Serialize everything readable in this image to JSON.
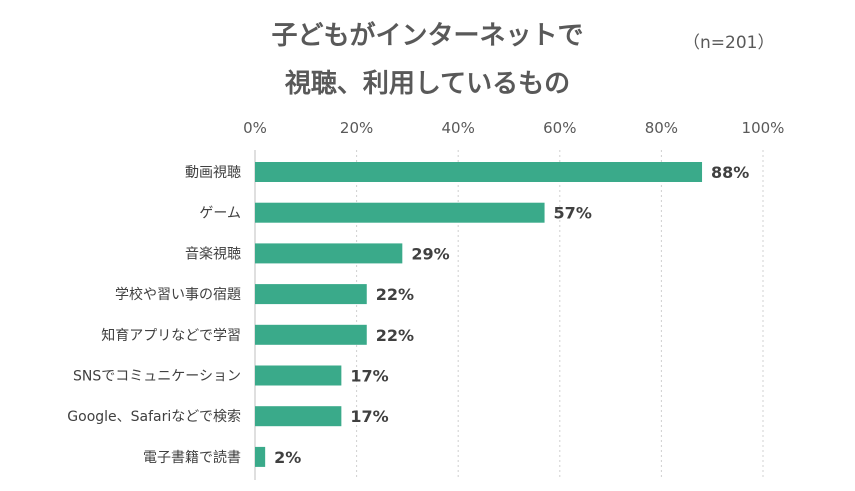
{
  "title_line1": "子どもがインターネットで",
  "title_line2": "視聴、利用しているもの",
  "sample_size": "（n=201）",
  "bar_color": "#3aaa8a",
  "chart_data": {
    "type": "bar",
    "orientation": "horizontal",
    "title": "子どもがインターネットで 視聴、利用しているもの",
    "categories": [
      "動画視聴",
      "ゲーム",
      "音楽視聴",
      "学校や習い事の宿題",
      "知育アプリなどで学習",
      "SNSでコミュニケーション",
      "Google、Safariなどで検索",
      "電子書籍で読書"
    ],
    "values": [
      88,
      57,
      29,
      22,
      22,
      17,
      17,
      2
    ],
    "value_labels": [
      "88%",
      "57%",
      "29%",
      "22%",
      "22%",
      "17%",
      "17%",
      "2%"
    ],
    "xlim": [
      0,
      100
    ],
    "x_ticks": [
      "0%",
      "20%",
      "40%",
      "60%",
      "80%",
      "100%"
    ],
    "grid": "vertical dotted",
    "legend": "none"
  }
}
